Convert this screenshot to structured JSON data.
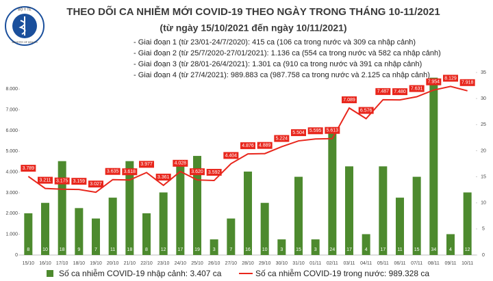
{
  "logo": {
    "top": "BỘ Y TẾ",
    "bottom": "MINISTRY OF HEALTH"
  },
  "chart_data": {
    "type": "bar-line",
    "title": "THEO DÕI CA NHIỄM MỚI COVID-19 THEO NGÀY TRONG THÁNG 10-11/2021",
    "subtitle": "(từ ngày 15/10/2021 đến ngày 10/11/2021)",
    "notes": [
      "- Giai đoạn 1 (từ 23/01-24/7/2020): 415 ca (106 ca trong nước và 309 ca nhập cảnh)",
      "- Giai đoạn 2 (từ 25/7/2020-27/01/2021): 1.136 ca (554 ca trong nước và 582 ca nhập cảnh)",
      "- Giai đoạn 3 (từ 28/01-26/4/2021): 1.301 ca (910 ca trong nước và 391 ca nhập cảnh)",
      "- Giai đoạn 4 (từ 27/4/2021): 989.883 ca (987.758 ca trong nước và 2.125 ca nhập cảnh)"
    ],
    "categories": [
      "15/10",
      "16/10",
      "17/10",
      "18/10",
      "19/10",
      "20/10",
      "21/10",
      "22/10",
      "23/10",
      "24/10",
      "25/10",
      "26/10",
      "27/10",
      "28/10",
      "29/10",
      "30/10",
      "31/10",
      "01/11",
      "02/11",
      "03/11",
      "04/11",
      "05/11",
      "06/11",
      "07/11",
      "08/11",
      "09/11",
      "10/11"
    ],
    "series": [
      {
        "name": "Số ca nhiễm COVID-19 nhập cảnh: 3.407 ca",
        "type": "bar",
        "axis": "y2",
        "color": "#4d8a2e",
        "values": [
          8,
          10,
          18,
          9,
          7,
          11,
          18,
          8,
          12,
          17,
          19,
          3,
          7,
          16,
          10,
          3,
          15,
          3,
          24,
          17,
          4,
          17,
          11,
          15,
          34,
          4,
          12
        ]
      },
      {
        "name": "Số ca nhiễm COVID-19 trong nước: 989.328 ca",
        "type": "line",
        "color": "#e8261c",
        "values": [
          3789,
          3211,
          3175,
          3159,
          3027,
          3635,
          3618,
          3977,
          3361,
          4028,
          3620,
          3592,
          4404,
          4876,
          4889,
          5224,
          5504,
          5595,
          5613,
          7089,
          6576,
          7487,
          7480,
          7631,
          7954,
          8129,
          7918
        ],
        "value_labels": [
          "3.789",
          "3.211",
          "3.175",
          "3.159",
          "3.027",
          "3.635",
          "3.618",
          "3.977",
          "3.361",
          "4.028",
          "3.620",
          "3.592",
          "4.404",
          "4.876",
          "4.889",
          "5.224",
          "5.504",
          "5.595",
          "5.613",
          "7.089",
          "6.576",
          "7.487",
          "7.480",
          "7.631",
          "7.954",
          "8.129",
          "7.918"
        ]
      }
    ],
    "ylim": [
      0,
      9000
    ],
    "yticks": [
      0,
      {
        "value": 1000,
        "label": "1.000"
      },
      {
        "value": 2000,
        "label": "2.000"
      },
      {
        "value": 3000,
        "label": "3.000"
      },
      {
        "value": 4000,
        "label": "4.000"
      },
      {
        "value": 5000,
        "label": "5.000"
      },
      {
        "value": 6000,
        "label": "6.000"
      },
      {
        "value": 7000,
        "label": "7.000"
      },
      {
        "value": 8000,
        "label": "8.000"
      }
    ],
    "y2lim": [
      0,
      35
    ],
    "y2ticks": [
      0,
      5,
      10,
      15,
      20,
      25,
      30,
      35
    ]
  }
}
